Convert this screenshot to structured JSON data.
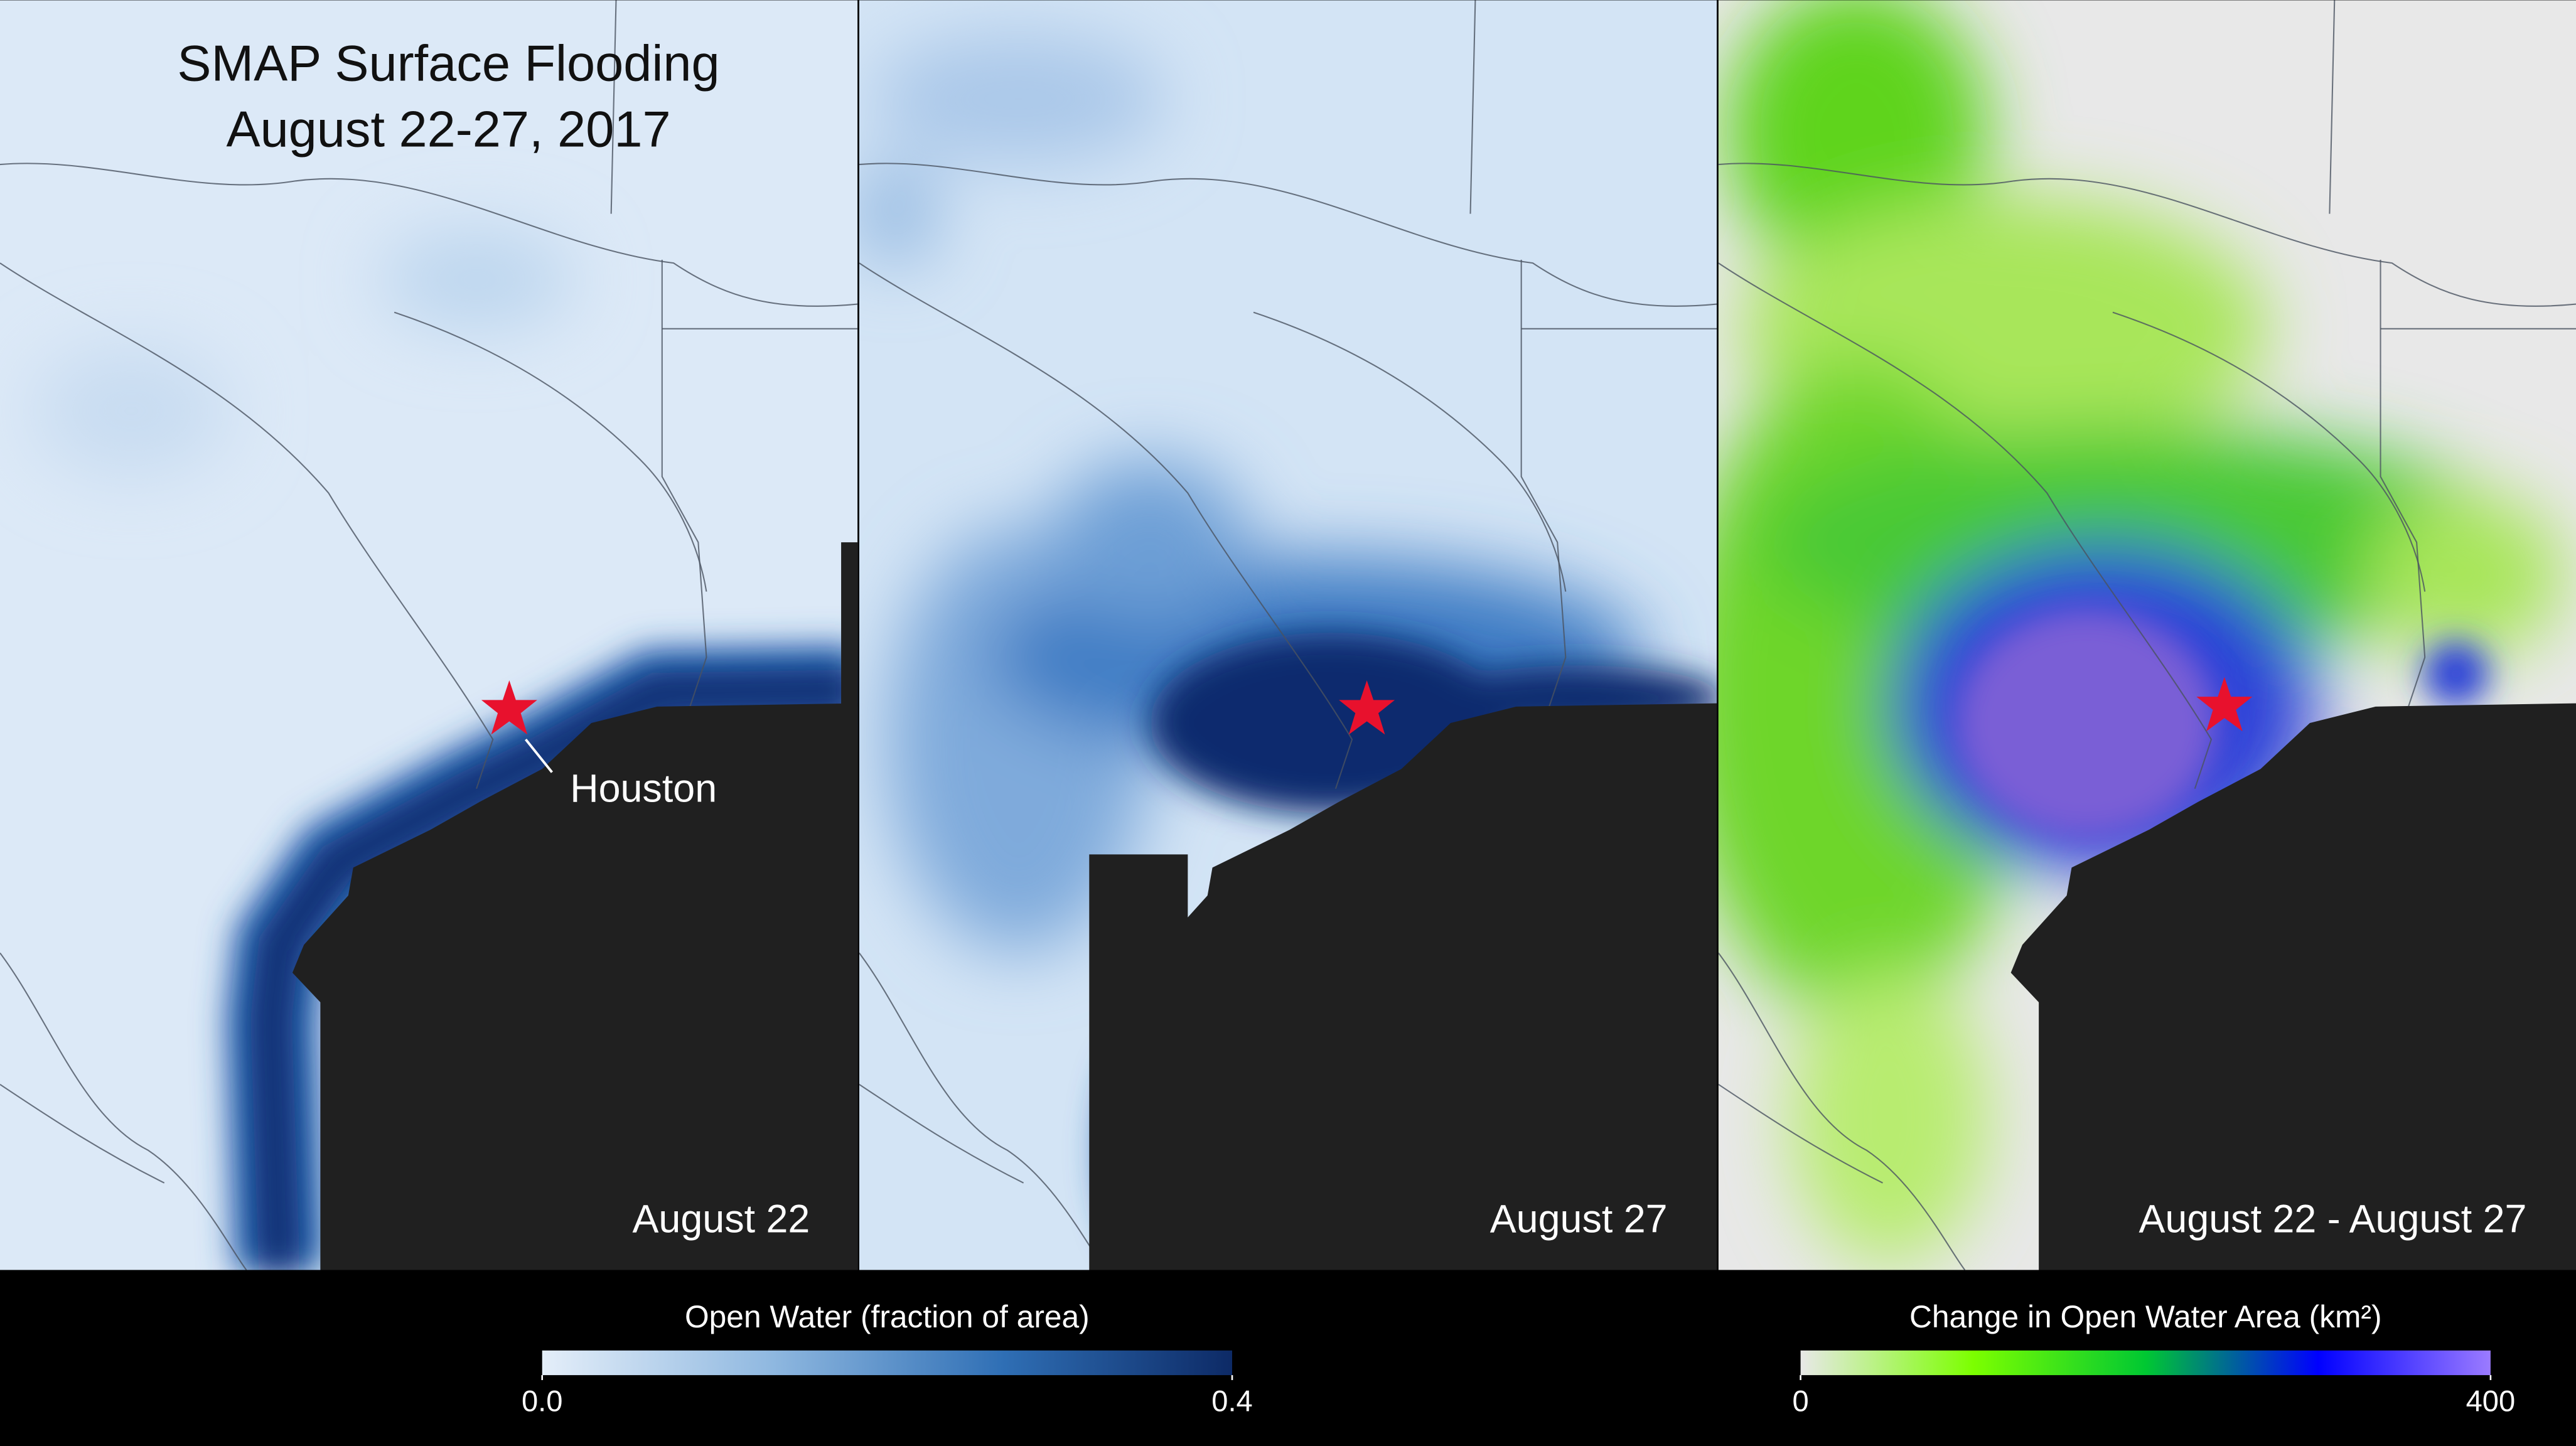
{
  "title": [
    "SMAP Surface Flooding",
    "August 22-27, 2017"
  ],
  "panels": [
    {
      "label": "August 22"
    },
    {
      "label": "August 27"
    },
    {
      "label": "August 22 - August 27"
    }
  ],
  "annotation": "Houston",
  "legends": [
    {
      "title": "Open Water  (fraction of area)",
      "range": [
        0,
        0.4
      ],
      "ticks": [
        {
          "value": 0,
          "label": "0.0"
        },
        0.4
      ],
      "colors": [
        "#e4eef9",
        "#8fb8e0",
        "#2f6fb5",
        "#0d2a66"
      ]
    },
    {
      "title": "Change in Open Water Area (km²)",
      "range": [
        0,
        400
      ],
      "ticks": [
        0,
        400
      ],
      "colors": [
        "#e8e8e8",
        "#7cff00",
        "#00c832",
        "#0000ff",
        "#9b7bff"
      ]
    }
  ]
}
